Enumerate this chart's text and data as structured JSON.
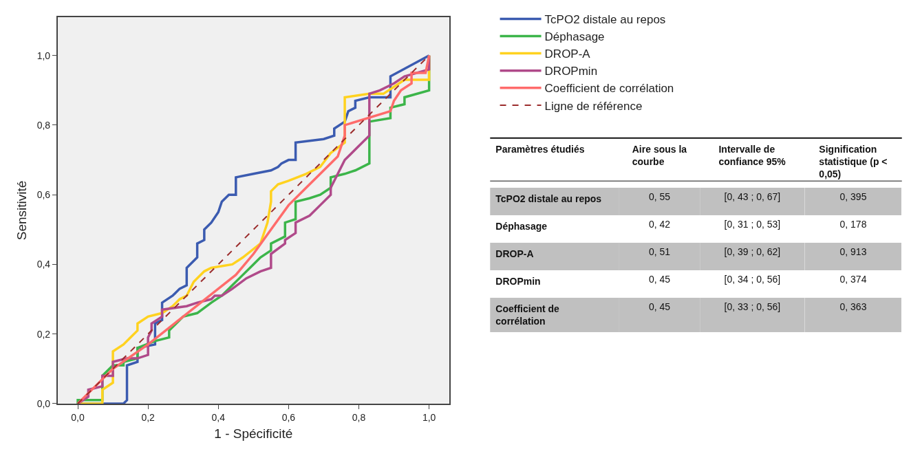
{
  "chart_data": [
    {
      "type": "line",
      "xlabel": "1 - Spécificité",
      "ylabel": "Sensitivité",
      "xlim": [
        -0.057,
        1.057
      ],
      "ylim": [
        0,
        1.11
      ],
      "xticks": [
        {
          "value": 0,
          "label": "0,0"
        },
        {
          "value": 0.2,
          "label": "0,2"
        },
        {
          "value": 0.4,
          "label": "0,4"
        },
        {
          "value": 0.6,
          "label": "0,6"
        },
        {
          "value": 0.8,
          "label": "0,8"
        },
        {
          "value": 1,
          "label": "1,0"
        }
      ],
      "yticks": [
        {
          "value": 0,
          "label": "0,0"
        },
        {
          "value": 0.2,
          "label": "0,2"
        },
        {
          "value": 0.4,
          "label": "0,4"
        },
        {
          "value": 0.6,
          "label": "0,6"
        },
        {
          "value": 0.8,
          "label": "0,8"
        },
        {
          "value": 1,
          "label": "1,0"
        }
      ],
      "grid": false,
      "legend": "right",
      "line_style": "solid",
      "series": [
        {
          "name": "TcPO2 distale au repos",
          "color": "#3b5bb0",
          "x": [
            0,
            0.13,
            0.14,
            0.14,
            0.17,
            0.17,
            0.22,
            0.22,
            0.24,
            0.24,
            0.27,
            0.29,
            0.31,
            0.31,
            0.34,
            0.34,
            0.36,
            0.36,
            0.38,
            0.4,
            0.41,
            0.43,
            0.45,
            0.45,
            0.5,
            0.55,
            0.57,
            0.58,
            0.6,
            0.62,
            0.62,
            0.7,
            0.73,
            0.73,
            0.76,
            0.77,
            0.79,
            0.79,
            0.83,
            0.89,
            0.89,
            1
          ],
          "values": [
            0,
            0,
            0.01,
            0.11,
            0.12,
            0.16,
            0.17,
            0.23,
            0.24,
            0.29,
            0.31,
            0.33,
            0.34,
            0.39,
            0.42,
            0.46,
            0.47,
            0.5,
            0.52,
            0.55,
            0.58,
            0.6,
            0.6,
            0.65,
            0.66,
            0.67,
            0.68,
            0.69,
            0.7,
            0.7,
            0.75,
            0.76,
            0.77,
            0.79,
            0.81,
            0.84,
            0.85,
            0.87,
            0.88,
            0.88,
            0.94,
            1
          ]
        },
        {
          "name": "Déphasage",
          "color": "#3cb54a",
          "x": [
            0,
            0,
            0.07,
            0.07,
            0.1,
            0.13,
            0.13,
            0.17,
            0.17,
            0.22,
            0.26,
            0.26,
            0.3,
            0.34,
            0.38,
            0.41,
            0.44,
            0.47,
            0.5,
            0.52,
            0.55,
            0.55,
            0.59,
            0.59,
            0.62,
            0.62,
            0.66,
            0.69,
            0.72,
            0.72,
            0.76,
            0.79,
            0.83,
            0.83,
            0.89,
            0.89,
            0.93,
            0.93,
            1,
            1
          ],
          "values": [
            0,
            0.01,
            0.01,
            0.08,
            0.11,
            0.11,
            0.12,
            0.13,
            0.16,
            0.18,
            0.19,
            0.21,
            0.25,
            0.26,
            0.29,
            0.31,
            0.34,
            0.37,
            0.4,
            0.42,
            0.44,
            0.46,
            0.48,
            0.52,
            0.53,
            0.58,
            0.59,
            0.6,
            0.62,
            0.65,
            0.66,
            0.67,
            0.69,
            0.81,
            0.82,
            0.85,
            0.86,
            0.88,
            0.9,
            1
          ]
        },
        {
          "name": "DROP-A",
          "color": "#ffd21f",
          "x": [
            0,
            0.07,
            0.07,
            0.1,
            0.1,
            0.13,
            0.15,
            0.17,
            0.17,
            0.2,
            0.24,
            0.27,
            0.29,
            0.31,
            0.33,
            0.36,
            0.38,
            0.44,
            0.47,
            0.52,
            0.54,
            0.55,
            0.55,
            0.57,
            0.6,
            0.65,
            0.69,
            0.72,
            0.76,
            0.76,
            0.83,
            0.87,
            0.9,
            0.93,
            1,
            1
          ],
          "values": [
            0,
            0,
            0.04,
            0.06,
            0.15,
            0.17,
            0.19,
            0.21,
            0.23,
            0.25,
            0.26,
            0.28,
            0.3,
            0.31,
            0.35,
            0.38,
            0.39,
            0.4,
            0.42,
            0.46,
            0.52,
            0.58,
            0.61,
            0.63,
            0.64,
            0.66,
            0.68,
            0.72,
            0.75,
            0.88,
            0.89,
            0.89,
            0.91,
            0.93,
            0.93,
            1
          ]
        },
        {
          "name": "DROPmin",
          "color": "#b04a8a",
          "x": [
            0,
            0.03,
            0.03,
            0.07,
            0.07,
            0.1,
            0.1,
            0.14,
            0.17,
            0.2,
            0.2,
            0.21,
            0.21,
            0.24,
            0.24,
            0.31,
            0.34,
            0.38,
            0.39,
            0.41,
            0.44,
            0.48,
            0.52,
            0.55,
            0.55,
            0.59,
            0.59,
            0.62,
            0.62,
            0.66,
            0.69,
            0.72,
            0.72,
            0.76,
            0.8,
            0.83,
            0.83,
            0.86,
            0.9,
            0.93,
            1,
            1
          ],
          "values": [
            0,
            0.02,
            0.04,
            0.05,
            0.08,
            0.08,
            0.12,
            0.13,
            0.13,
            0.14,
            0.19,
            0.21,
            0.23,
            0.25,
            0.27,
            0.28,
            0.29,
            0.3,
            0.31,
            0.31,
            0.33,
            0.36,
            0.38,
            0.39,
            0.43,
            0.46,
            0.47,
            0.49,
            0.52,
            0.54,
            0.57,
            0.6,
            0.62,
            0.7,
            0.74,
            0.77,
            0.89,
            0.9,
            0.92,
            0.94,
            0.96,
            1
          ]
        },
        {
          "name": "Coefficient de corrélation",
          "color": "#ff6b6b",
          "x": [
            0,
            0.1,
            0.2,
            0.3,
            0.4,
            0.45,
            0.5,
            0.55,
            0.6,
            0.65,
            0.7,
            0.74,
            0.76,
            0.76,
            0.89,
            0.9,
            0.92,
            0.95,
            0.95,
            0.99,
            1
          ],
          "values": [
            0,
            0.1,
            0.17,
            0.25,
            0.33,
            0.37,
            0.43,
            0.5,
            0.57,
            0.62,
            0.67,
            0.71,
            0.77,
            0.8,
            0.84,
            0.87,
            0.9,
            0.92,
            0.95,
            0.95,
            1
          ]
        },
        {
          "name": "Ligne de référence",
          "color": "#9b2c2c",
          "line_style": "dashed",
          "x": [
            0,
            1
          ],
          "values": [
            0,
            1
          ]
        }
      ]
    },
    {
      "type": "other",
      "categories": [
        "Paramètres étudiés",
        "Aire sous la courbe",
        "Intervalle de confiance 95%",
        "Signification statistique (p < 0,05)"
      ],
      "y_categories": [
        "TcPO2 distale au repos",
        "Déphasage",
        "DROP-A",
        "DROPmin",
        "Coefficient de corrélation"
      ],
      "cell_labels": [
        [
          "0, 55",
          "[0, 43 ; 0, 67]",
          "0, 395"
        ],
        [
          "0, 42",
          "[0, 31 ; 0, 53]",
          "0, 178"
        ],
        [
          "0, 51",
          "[0, 39 ; 0, 62]",
          "0, 913"
        ],
        [
          "0, 45",
          "[0, 34 ; 0, 56]",
          "0, 374"
        ],
        [
          "0, 45",
          "[0, 33 ; 0, 56]",
          "0, 363"
        ]
      ]
    }
  ]
}
